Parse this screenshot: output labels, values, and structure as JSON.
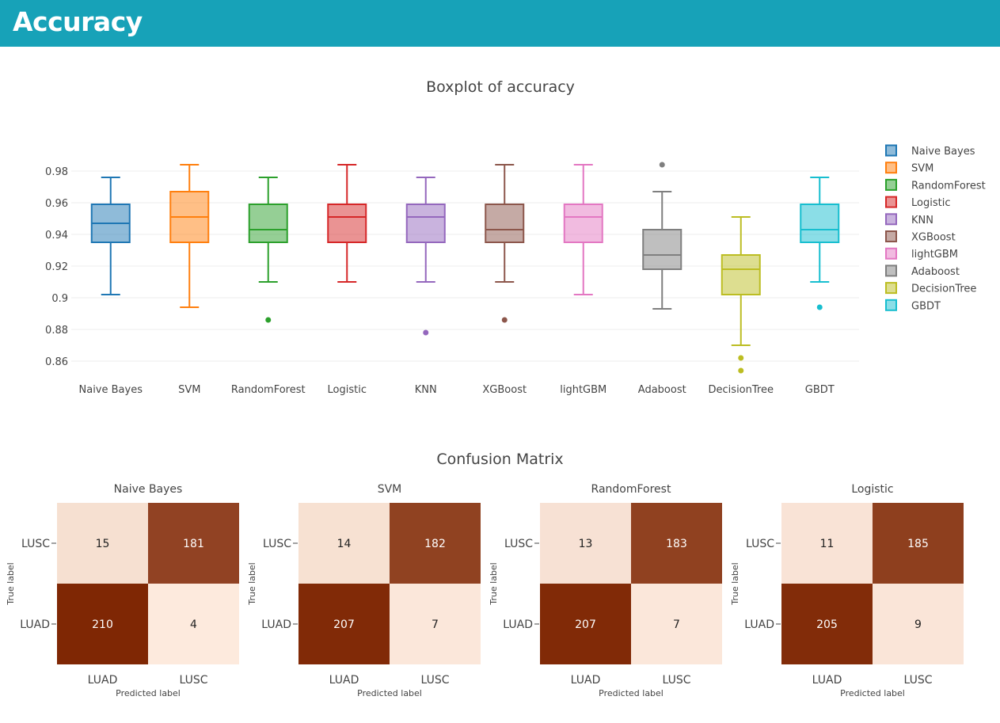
{
  "page": {
    "title": "Accuracy"
  },
  "chart_data": [
    {
      "type": "box",
      "title": "Boxplot of accuracy",
      "xlabel": "",
      "ylabel": "",
      "ylim": [
        0.848,
        0.99
      ],
      "yticks": [
        0.86,
        0.88,
        0.9,
        0.92,
        0.94,
        0.96,
        0.98
      ],
      "ytick_labels": [
        "0.86",
        "0.88",
        "0.9",
        "0.92",
        "0.94",
        "0.96",
        "0.98"
      ],
      "grid": true,
      "legend": "right",
      "series": [
        {
          "name": "Naive Bayes",
          "color": "#1f77b4",
          "min": 0.902,
          "q1": 0.935,
          "median": 0.947,
          "q3": 0.959,
          "max": 0.976,
          "outliers": []
        },
        {
          "name": "SVM",
          "color": "#ff7f0e",
          "min": 0.894,
          "q1": 0.935,
          "median": 0.951,
          "q3": 0.967,
          "max": 0.984,
          "outliers": []
        },
        {
          "name": "RandomForest",
          "color": "#2ca02c",
          "min": 0.91,
          "q1": 0.935,
          "median": 0.943,
          "q3": 0.959,
          "max": 0.976,
          "outliers": [
            0.886
          ]
        },
        {
          "name": "Logistic",
          "color": "#d62728",
          "min": 0.91,
          "q1": 0.935,
          "median": 0.951,
          "q3": 0.959,
          "max": 0.984,
          "outliers": []
        },
        {
          "name": "KNN",
          "color": "#9467bd",
          "min": 0.91,
          "q1": 0.935,
          "median": 0.951,
          "q3": 0.959,
          "max": 0.976,
          "outliers": [
            0.878
          ]
        },
        {
          "name": "XGBoost",
          "color": "#8c564b",
          "min": 0.91,
          "q1": 0.935,
          "median": 0.943,
          "q3": 0.959,
          "max": 0.984,
          "outliers": [
            0.886
          ]
        },
        {
          "name": "lightGBM",
          "color": "#e377c2",
          "min": 0.902,
          "q1": 0.935,
          "median": 0.951,
          "q3": 0.959,
          "max": 0.984,
          "outliers": []
        },
        {
          "name": "Adaboost",
          "color": "#7f7f7f",
          "min": 0.893,
          "q1": 0.918,
          "median": 0.927,
          "q3": 0.943,
          "max": 0.967,
          "outliers": [
            0.984
          ]
        },
        {
          "name": "DecisionTree",
          "color": "#bcbd22",
          "min": 0.87,
          "q1": 0.902,
          "median": 0.918,
          "q3": 0.927,
          "max": 0.951,
          "outliers": [
            0.862,
            0.854
          ]
        },
        {
          "name": "GBDT",
          "color": "#17becf",
          "min": 0.91,
          "q1": 0.935,
          "median": 0.943,
          "q3": 0.959,
          "max": 0.976,
          "outliers": [
            0.894
          ]
        }
      ]
    },
    {
      "type": "heatmap",
      "title": "Confusion Matrix",
      "xlabel": "Predicted label",
      "ylabel": "True label",
      "x_labels": [
        "LUAD",
        "LUSC"
      ],
      "y_labels": [
        "LUSC",
        "LUAD"
      ],
      "colorscale": [
        "#fdeadd",
        "#7f2704"
      ],
      "panels": [
        {
          "name": "Naive Bayes",
          "values": [
            [
              15,
              181
            ],
            [
              210,
              4
            ]
          ]
        },
        {
          "name": "SVM",
          "values": [
            [
              14,
              182
            ],
            [
              207,
              7
            ]
          ]
        },
        {
          "name": "RandomForest",
          "values": [
            [
              13,
              183
            ],
            [
              207,
              7
            ]
          ]
        },
        {
          "name": "Logistic",
          "values": [
            [
              11,
              185
            ],
            [
              205,
              9
            ]
          ]
        }
      ]
    }
  ]
}
